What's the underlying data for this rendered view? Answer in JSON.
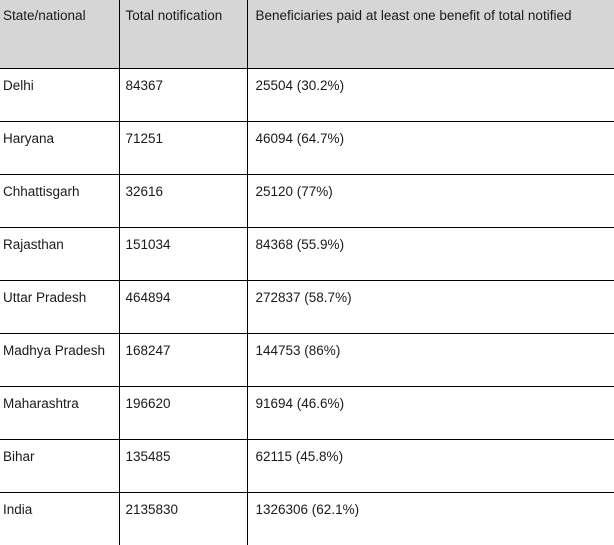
{
  "table": {
    "headers": [
      "State/national",
      "Total notification",
      "Beneficiaries paid at least one benefit of total notified"
    ],
    "rows": [
      [
        "Delhi",
        "84367",
        "25504 (30.2%)"
      ],
      [
        "Haryana",
        "71251",
        "46094 (64.7%)"
      ],
      [
        "Chhattisgarh",
        "32616",
        "25120 (77%)"
      ],
      [
        "Rajasthan",
        "151034",
        "84368 (55.9%)"
      ],
      [
        "Uttar Pradesh",
        "464894",
        "272837 (58.7%)"
      ],
      [
        "Madhya Pradesh",
        "168247",
        "144753 (86%)"
      ],
      [
        "Maharashtra",
        "196620",
        "91694 (46.6%)"
      ],
      [
        "Bihar",
        "135485",
        "62115 (45.8%)"
      ],
      [
        "India",
        "2135830",
        "1326306 (62.1%)"
      ]
    ]
  }
}
